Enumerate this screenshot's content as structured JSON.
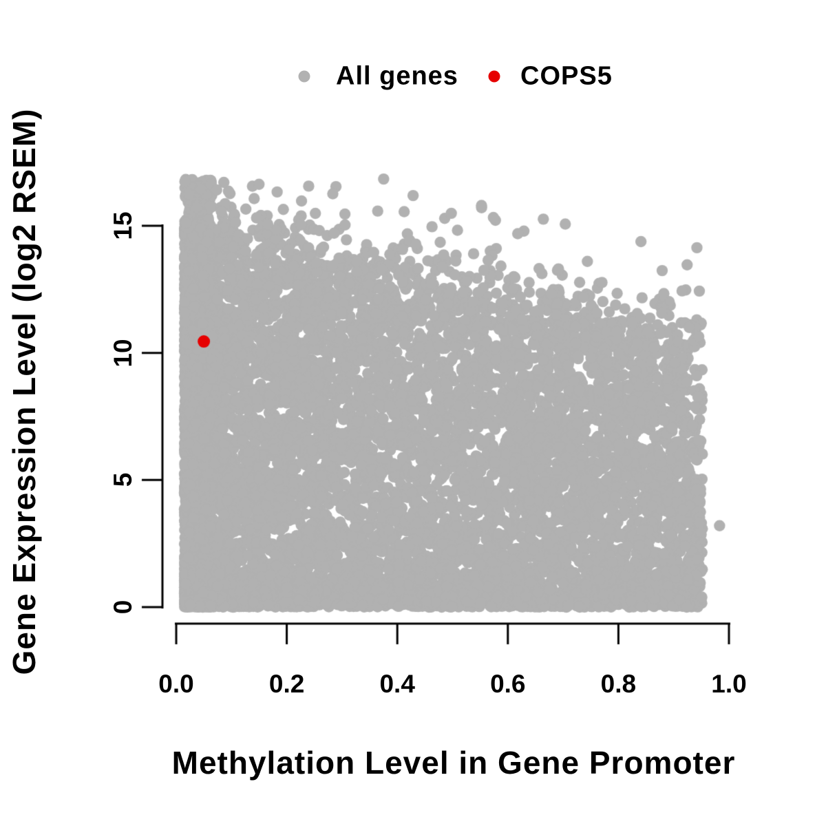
{
  "figure": {
    "background": "#FFFFFF",
    "description": "R-style scatter plot of gene expression level versus promoter methylation level, with one highlighted gene (COPS5)."
  },
  "legend": {
    "items": [
      {
        "label": "All genes",
        "color": "#B1B1B1",
        "marker": "filled-circle"
      },
      {
        "label": "COPS5",
        "color": "#E60000",
        "marker": "filled-circle"
      }
    ]
  },
  "axes": {
    "x": {
      "title": "Methylation Level in Gene Promoter",
      "ticks": [
        {
          "label": "0.0",
          "value": 0.0
        },
        {
          "label": "0.2",
          "value": 0.2
        },
        {
          "label": "0.4",
          "value": 0.4
        },
        {
          "label": "0.6",
          "value": 0.6
        },
        {
          "label": "0.8",
          "value": 0.8
        },
        {
          "label": "1.0",
          "value": 1.0
        }
      ]
    },
    "y": {
      "title": "Gene Expression Level (log2 RSEM)",
      "ticks": [
        {
          "label": "0",
          "value": 0
        },
        {
          "label": "5",
          "value": 5
        },
        {
          "label": "10",
          "value": 10
        },
        {
          "label": "15",
          "value": 15
        }
      ]
    }
  },
  "chart_data": {
    "type": "scatter",
    "title": "",
    "xlabel": "Methylation Level in Gene Promoter",
    "ylabel": "Gene Expression Level (log2 RSEM)",
    "xlim": [
      0,
      1.0
    ],
    "ylim": [
      0,
      17
    ],
    "x_ticks": [
      0.0,
      0.2,
      0.4,
      0.6,
      0.8,
      1.0
    ],
    "y_ticks": [
      0,
      5,
      10,
      15
    ],
    "grid": false,
    "legend_position": "top-center",
    "axis_color": "#000000",
    "series": [
      {
        "name": "All genes",
        "color": "#B1B1B1",
        "marker_radius_px": 8.2,
        "kind": "generated_cloud",
        "description": "Dense cloud of ~9500 genes. Methylation spans 0.015-0.95. Expression is solid from 0 up to an upper envelope that declines from ~15.5 at methylation 0.05 to ~10 at methylation 0.95, with a sparse halo of points above the envelope reaching ~16.9, and a very dense band of near-zero expression across all methylation levels.",
        "generator": {
          "seed": 20210908,
          "n_points": 9500,
          "x_min": 0.015,
          "x_max": 0.952,
          "mix_left": 0.42,
          "left_pow": 1.9,
          "mix_uniform": 0.46,
          "left_col_width": 0.05,
          "left_col_top": 15.6,
          "env_intercept": 14.4,
          "env_slope": -4.6,
          "env_noise_sd": 0.35,
          "frac_bottom": 0.12,
          "bottom_sd": 0.45,
          "frac_halo": 0.07,
          "halo_scale": 0.85,
          "bulk_pow": 1.12,
          "y_max": 16.85
        },
        "extra_points": [
          [
            0.983,
            3.2
          ]
        ]
      },
      {
        "name": "COPS5",
        "color": "#E60000",
        "marker_radius_px": 9,
        "points": [
          [
            0.05,
            10.45
          ]
        ]
      }
    ]
  }
}
